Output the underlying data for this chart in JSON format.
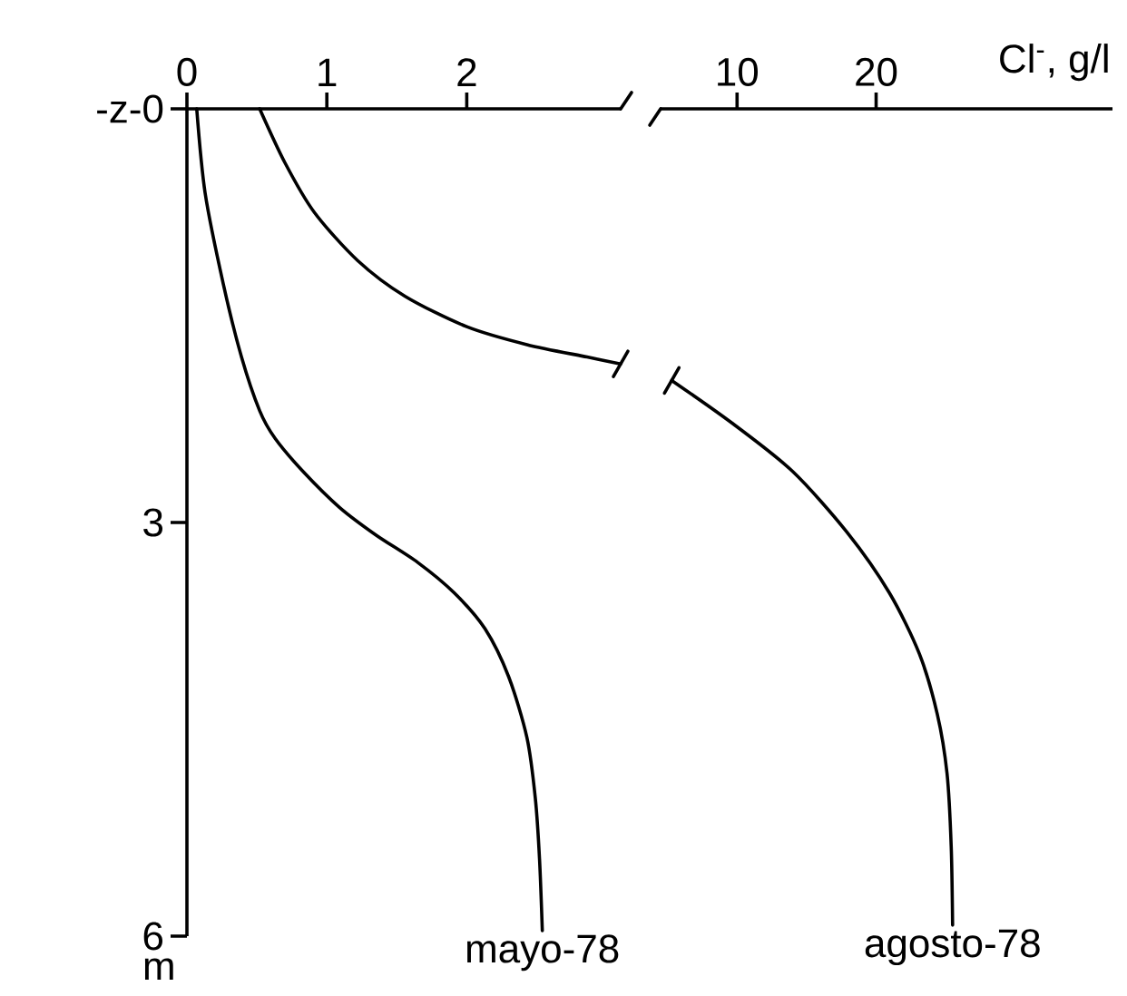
{
  "chart_data": [
    {
      "type": "line",
      "ylabel": "m",
      "xlim": [
        0,
        3.1
      ],
      "xticks": [
        0,
        1,
        2
      ],
      "ylim": [
        6,
        0
      ],
      "yticks": [
        {
          "value": 0,
          "label": "-z-0"
        },
        3,
        6
      ],
      "marker": "none",
      "line_style": "solid",
      "series": [
        {
          "name": "mayo-78",
          "color": "#000000",
          "x": [
            0.07,
            0.13,
            0.26,
            0.39,
            0.52,
            0.63,
            0.83,
            1.09,
            1.35,
            1.65,
            1.91,
            2.13,
            2.3,
            2.43,
            2.49,
            2.52,
            2.54
          ],
          "values": [
            0,
            0.61,
            1.27,
            1.8,
            2.19,
            2.39,
            2.63,
            2.89,
            3.09,
            3.29,
            3.51,
            3.77,
            4.12,
            4.56,
            5.0,
            5.44,
            5.96
          ]
        },
        {
          "color": "#000000",
          "x": [
            0.52,
            0.7,
            0.91,
            1.22,
            1.56,
            2.0,
            2.43,
            2.86,
            3.1
          ],
          "values": [
            0,
            0.39,
            0.75,
            1.1,
            1.36,
            1.58,
            1.71,
            1.8,
            1.85
          ]
        }
      ]
    },
    {
      "type": "line",
      "xlabel": "Cl$^{-}$, g/l",
      "xlim": [
        4.5,
        37
      ],
      "xticks": [
        10,
        20
      ],
      "ylim": [
        6,
        0
      ],
      "tick_labels": "x",
      "marker": "none",
      "line_style": "solid",
      "series": [
        {
          "name": "agosto-78",
          "color": "#000000",
          "x": [
            5.3,
            9.65,
            14.0,
            17.9,
            20.95,
            23.1,
            24.4,
            25.1,
            25.4,
            25.5
          ],
          "values": [
            1.97,
            2.28,
            2.63,
            3.07,
            3.51,
            3.95,
            4.39,
            4.82,
            5.35,
            5.92
          ]
        }
      ]
    }
  ]
}
